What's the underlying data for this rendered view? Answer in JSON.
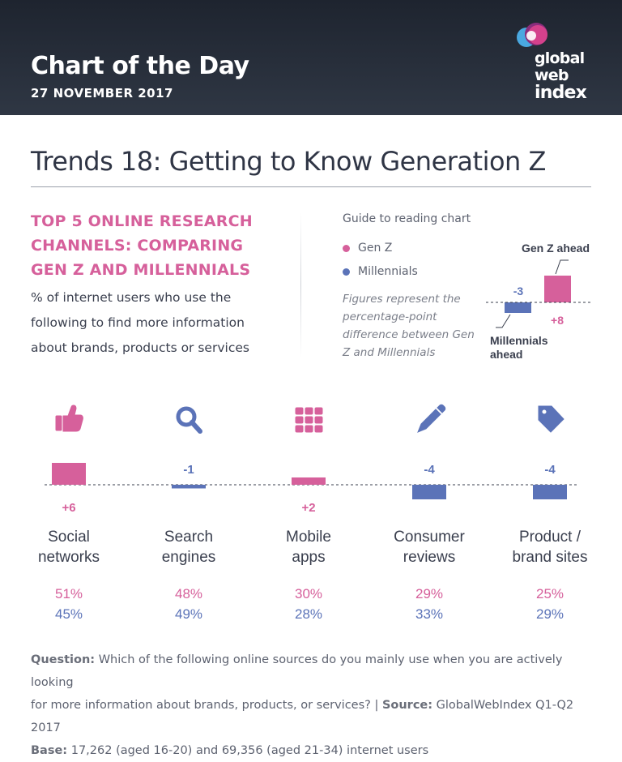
{
  "header": {
    "title": "Chart of the Day",
    "date": "27 NOVEMBER 2017",
    "logo": {
      "line1": "global",
      "line2": "web",
      "line3": "index"
    }
  },
  "main_title": "Trends 18: Getting to Know Generation Z",
  "intro": {
    "subtitle_lines": [
      "TOP 5 ONLINE RESEARCH",
      "CHANNELS: COMPARING",
      "GEN Z AND MILLENNIALS"
    ],
    "description_lines": [
      "% of internet users who use the",
      "following to find more information",
      "about brands, products or services"
    ]
  },
  "guide": {
    "title": "Guide to reading chart",
    "legend": [
      {
        "label": "Gen Z",
        "color": "#d6609b"
      },
      {
        "label": "Millennials",
        "color": "#5b73b8"
      }
    ],
    "note_lines": [
      "Figures represent the",
      "percentage-point",
      "difference between Gen",
      "Z and Millennials"
    ],
    "example": {
      "genz_ahead_label": "Gen Z ahead",
      "millennials_ahead_label_lines": [
        "Millennials",
        "ahead"
      ],
      "negative_value": "-3",
      "positive_value": "+8"
    }
  },
  "colors": {
    "genz": "#d6609b",
    "millennials": "#5b73b8",
    "text": "#3a3f4e"
  },
  "chart_data": {
    "type": "bar",
    "categories": [
      "Social networks",
      "Search engines",
      "Mobile apps",
      "Consumer reviews",
      "Product / brand sites"
    ],
    "category_label_lines": [
      [
        "Social",
        "networks"
      ],
      [
        "Search",
        "engines"
      ],
      [
        "Mobile",
        "apps"
      ],
      [
        "Consumer",
        "reviews"
      ],
      [
        "Product /",
        "brand sites"
      ]
    ],
    "icons": [
      "thumbs-up-icon",
      "search-icon",
      "apps-grid-icon",
      "pencil-icon",
      "tag-icon"
    ],
    "difference_labels": [
      "+6",
      "-1",
      "+2",
      "-4",
      "-4"
    ],
    "difference": [
      6,
      -1,
      2,
      -4,
      -4
    ],
    "series": [
      {
        "name": "Gen Z",
        "values": [
          51,
          48,
          30,
          29,
          25
        ],
        "labels": [
          "51%",
          "48%",
          "30%",
          "29%",
          "25%"
        ]
      },
      {
        "name": "Millennials",
        "values": [
          45,
          49,
          28,
          33,
          29
        ],
        "labels": [
          "45%",
          "49%",
          "28%",
          "33%",
          "29%"
        ]
      }
    ],
    "title": "TOP 5 ONLINE RESEARCH CHANNELS: COMPARING GEN Z AND MILLENNIALS",
    "ylabel": "",
    "xlabel": ""
  },
  "footer": {
    "question_label": "Question:",
    "question_text_line1": " Which of the following online sources do you mainly use when you are actively looking",
    "question_text_line2": "for more information about brands, products, or services? | ",
    "source_label": "Source:",
    "source_text": " GlobalWebIndex Q1-Q2 2017",
    "base_label": "Base:",
    "base_text": " 17,262 (aged 16-20) and 69,356 (aged 21-34) internet users"
  }
}
